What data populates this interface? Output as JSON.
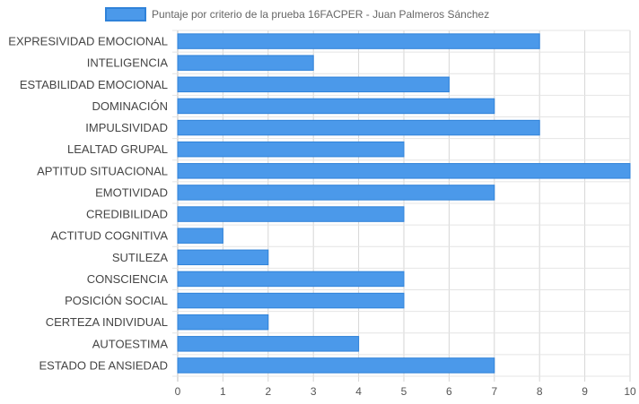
{
  "chart_data": {
    "type": "bar",
    "orientation": "horizontal",
    "categories": [
      "EXPRESIVIDAD EMOCIONAL",
      "INTELIGENCIA",
      "ESTABILIDAD EMOCIONAL",
      "DOMINACIÓN",
      "IMPULSIVIDAD",
      "LEALTAD GRUPAL",
      "APTITUD SITUACIONAL",
      "EMOTIVIDAD",
      "CREDIBILIDAD",
      "ACTITUD COGNITIVA",
      "SUTILEZA",
      "CONSCIENCIA",
      "POSICIÓN SOCIAL",
      "CERTEZA INDIVIDUAL",
      "AUTOESTIMA",
      "ESTADO DE ANSIEDAD"
    ],
    "series": [
      {
        "name": "Puntaje por criterio de la prueba 16FACPER - Juan Palmeros Sánchez",
        "values": [
          8,
          3,
          6,
          7,
          8,
          5,
          10,
          7,
          5,
          1,
          2,
          5,
          5,
          2,
          4,
          7
        ],
        "color": "#4b99ea",
        "border_color": "#2f82d9"
      }
    ],
    "xlim": [
      0,
      10
    ],
    "xticks": [
      "0",
      "1",
      "2",
      "3",
      "4",
      "5",
      "6",
      "7",
      "8",
      "9",
      "10"
    ],
    "grid": true,
    "legend": "top-center"
  }
}
